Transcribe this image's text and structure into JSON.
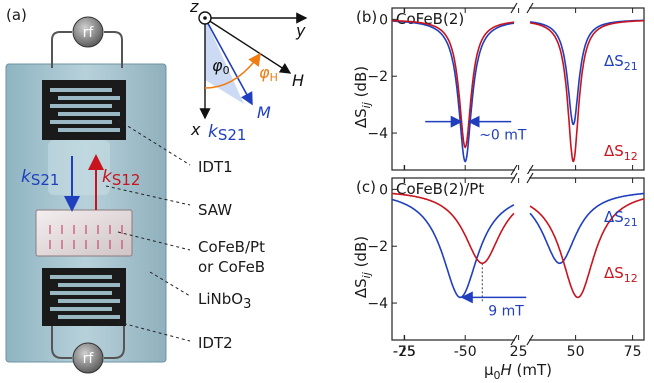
{
  "schematic": {
    "panel_label": "(a)",
    "rf_top": "rf",
    "rf_bottom": "rf",
    "k_s21": "k",
    "k_s21_sub": "S21",
    "k_s12": "k",
    "k_s12_sub": "S12",
    "labels": {
      "idt1": "IDT1",
      "saw": "SAW",
      "film_line1": "CoFeB/Pt",
      "film_line2": "or CoFeB",
      "substrate_main": "LiNbO",
      "substrate_sub": "3",
      "idt2": "IDT2"
    },
    "colors": {
      "s21": "#1f3fbf",
      "s12": "#c8141e",
      "angle": "#f07d14"
    }
  },
  "axes_diagram": {
    "z": "z",
    "y": "y",
    "x": "x",
    "H": "H",
    "M": "M",
    "phi0": "φ",
    "phi0_sub": "0",
    "phiH": "φ",
    "phiH_sub": "H",
    "k": "k",
    "k_sub": "S21"
  },
  "chart_data": [
    {
      "type": "line",
      "panel_label": "(b)",
      "title": "CoFeB(2)",
      "xlabel_prefix": "μ",
      "xlabel_sub": "0",
      "xlabel_rest": "H (mT)",
      "ylabel_main": "ΔS",
      "ylabel_sub": "ij",
      "ylabel_unit": " (dB)",
      "xlim": [
        -80,
        80
      ],
      "axis_break": [
        -30,
        30
      ],
      "ylim": [
        -5.3,
        0.4
      ],
      "xticks": [
        -75,
        -50,
        -25,
        25,
        50,
        75
      ],
      "yticks": [
        0,
        -2,
        -4
      ],
      "legend_placement": "right",
      "series": [
        {
          "name": "ΔS",
          "name_sub": "21",
          "color": "#1f3fbf",
          "center": -50,
          "gamma": 3.3,
          "depth": -5.0
        },
        {
          "name": "ΔS",
          "name_sub": "12",
          "color": "#c8141e",
          "center": -50,
          "gamma": 3.0,
          "depth": -4.5
        },
        {
          "name": "ΔS",
          "name_sub": "21",
          "color": "#1f3fbf",
          "center": 49,
          "gamma": 3.0,
          "depth": -3.7
        },
        {
          "name": "ΔS",
          "name_sub": "12",
          "color": "#c8141e",
          "center": 49,
          "gamma": 3.0,
          "depth": -5.0
        }
      ],
      "annotation": "~0 mT"
    },
    {
      "type": "line",
      "panel_label": "(c)",
      "title": "CoFeB(2)/Pt",
      "xlabel_prefix": "μ",
      "xlabel_sub": "0",
      "xlabel_rest": "H (mT)",
      "ylabel_main": "ΔS",
      "ylabel_sub": "ij",
      "ylabel_unit": " (dB)",
      "xlim": [
        -80,
        80
      ],
      "axis_break": [
        -30,
        30
      ],
      "ylim": [
        -5.3,
        0.4
      ],
      "xticks": [
        -75,
        -50,
        -25,
        25,
        50,
        75
      ],
      "xtick_labels": [
        "-75",
        "-50",
        "-25",
        "25",
        "50",
        "75"
      ],
      "yticks": [
        0,
        -2,
        -4
      ],
      "legend_placement": "right",
      "series": [
        {
          "name": "ΔS",
          "name_sub": "21",
          "color": "#1f3fbf",
          "center": -52,
          "gamma": 9,
          "depth": -3.8
        },
        {
          "name": "ΔS",
          "name_sub": "12",
          "color": "#c8141e",
          "center": -43,
          "gamma": 9,
          "depth": -2.6
        },
        {
          "name": "ΔS",
          "name_sub": "21",
          "color": "#1f3fbf",
          "center": 43,
          "gamma": 9,
          "depth": -2.6
        },
        {
          "name": "ΔS",
          "name_sub": "12",
          "color": "#c8141e",
          "center": 51,
          "gamma": 9,
          "depth": -3.8
        }
      ],
      "annotation": "9 mT"
    }
  ]
}
